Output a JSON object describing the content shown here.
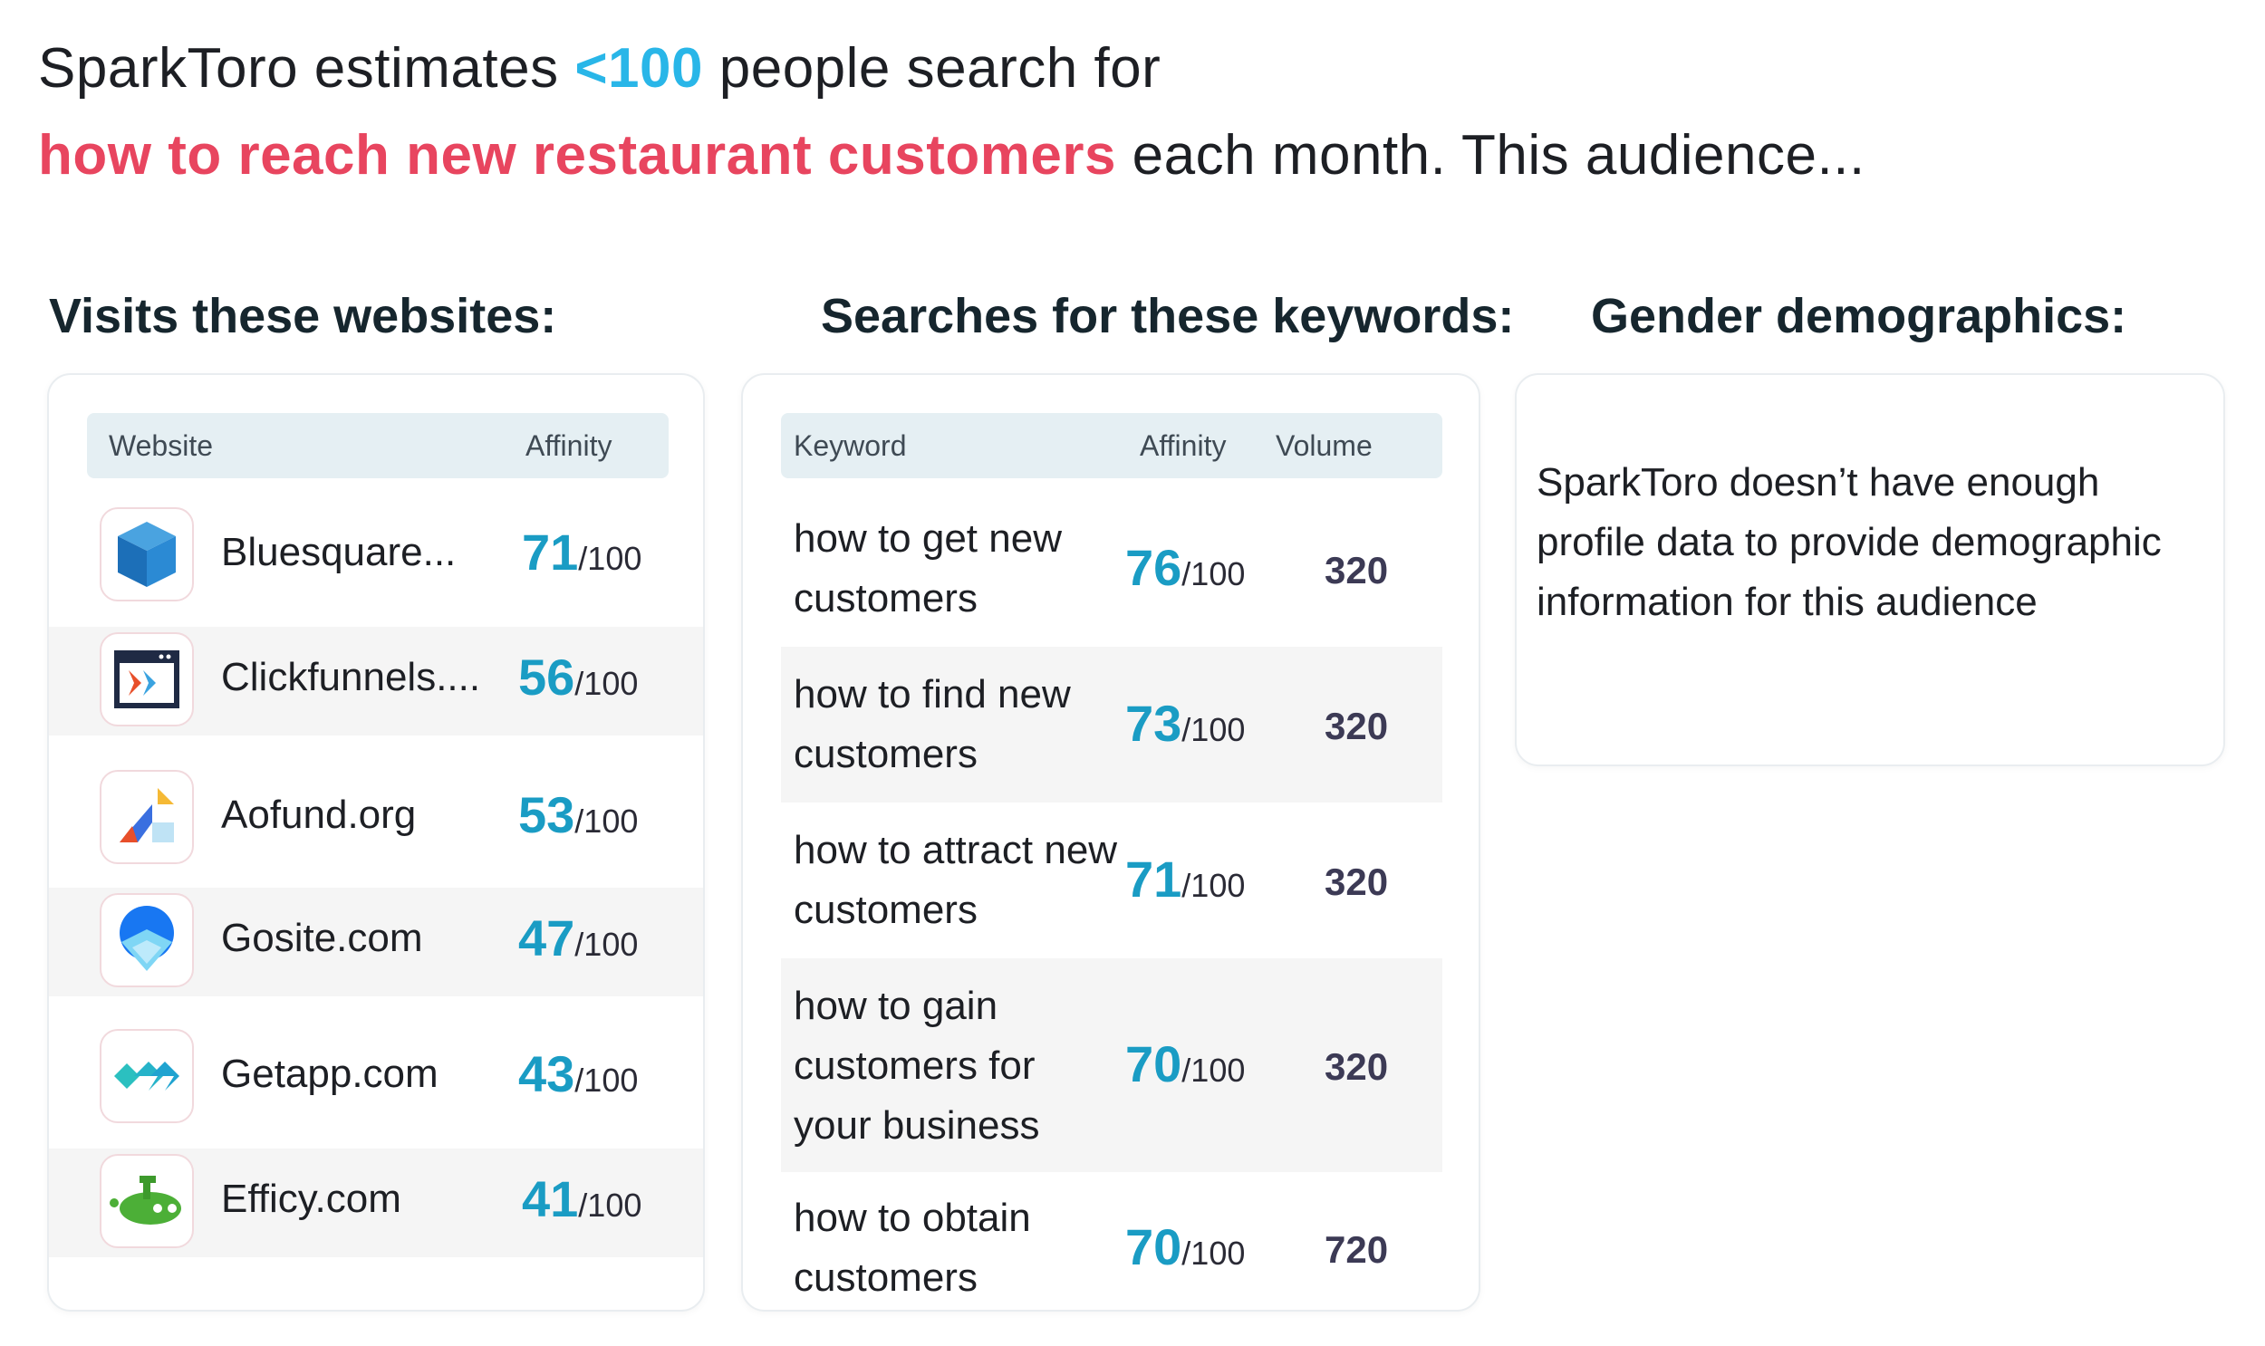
{
  "headline": {
    "prefix": "SparkToro estimates ",
    "count": "<100",
    "mid": " people search for",
    "query": "how to reach new restaurant customers",
    "suffix": " each month. This audience..."
  },
  "colors": {
    "accent_blue": "#29b6e8",
    "query_red": "#e8455f",
    "affinity_blue": "#1a9cc4",
    "header_bg": "#e5eff3"
  },
  "websites": {
    "title": "Visits these websites:",
    "col_website": "Website",
    "col_affinity": "Affinity",
    "rows": [
      {
        "name": "Bluesquare...",
        "affinity": "71",
        "denom": "/100",
        "icon": "bluesquare-logo-icon"
      },
      {
        "name": "Clickfunnels....",
        "affinity": "56",
        "denom": "/100",
        "icon": "clickfunnels-logo-icon"
      },
      {
        "name": "Aofund.org",
        "affinity": "53",
        "denom": "/100",
        "icon": "aofund-logo-icon"
      },
      {
        "name": "Gosite.com",
        "affinity": "47",
        "denom": "/100",
        "icon": "gosite-logo-icon"
      },
      {
        "name": "Getapp.com",
        "affinity": "43",
        "denom": "/100",
        "icon": "getapp-logo-icon"
      },
      {
        "name": "Efficy.com",
        "affinity": "41",
        "denom": "/100",
        "icon": "efficy-logo-icon"
      }
    ]
  },
  "keywords": {
    "title": "Searches for these keywords:",
    "col_keyword": "Keyword",
    "col_affinity": "Affinity",
    "col_volume": "Volume",
    "rows": [
      {
        "keyword": "how to get new customers",
        "affinity": "76",
        "denom": "/100",
        "volume": "320"
      },
      {
        "keyword": "how to find new customers",
        "affinity": "73",
        "denom": "/100",
        "volume": "320"
      },
      {
        "keyword": "how to attract new customers",
        "affinity": "71",
        "denom": "/100",
        "volume": "320"
      },
      {
        "keyword": "how to gain customers for your business",
        "affinity": "70",
        "denom": "/100",
        "volume": "320"
      },
      {
        "keyword": "how to obtain customers",
        "affinity": "70",
        "denom": "/100",
        "volume": "720"
      }
    ]
  },
  "gender": {
    "title": "Gender demographics:",
    "message": "SparkToro doesn’t have enough profile data to provide demographic information for this audience"
  }
}
